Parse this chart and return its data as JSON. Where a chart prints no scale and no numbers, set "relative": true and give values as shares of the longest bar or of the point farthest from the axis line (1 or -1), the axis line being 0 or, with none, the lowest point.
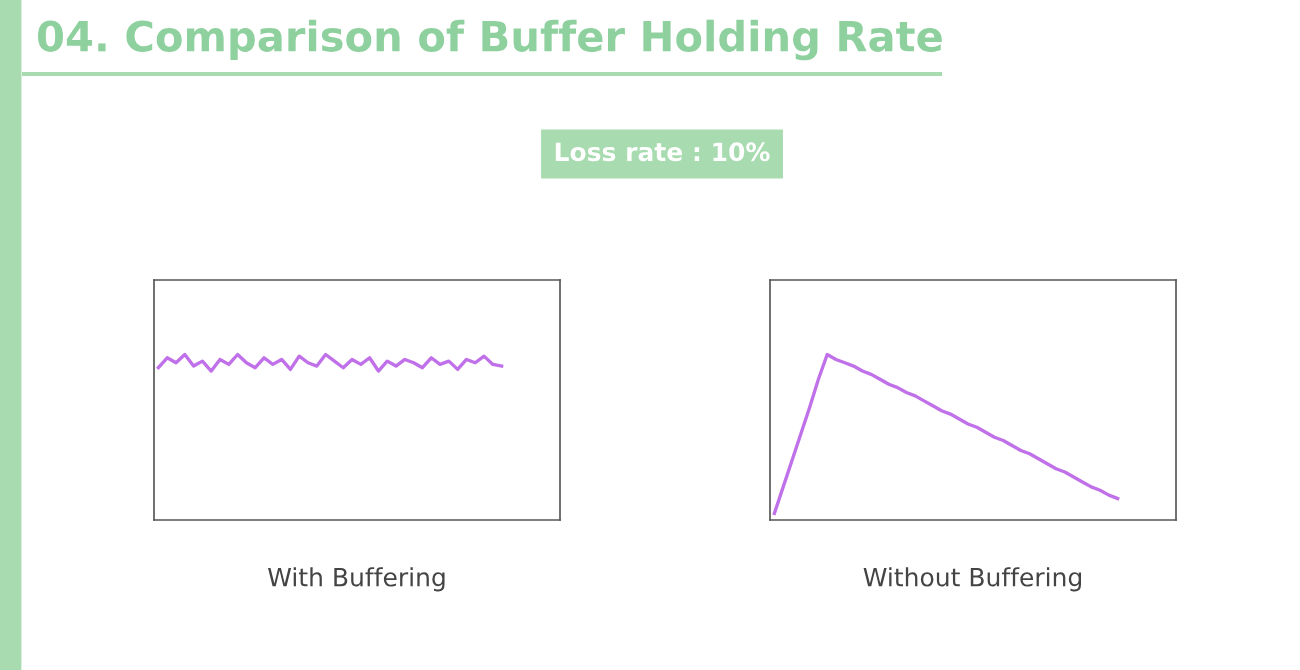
{
  "chart_data": [
    {
      "type": "other",
      "title": "04. Comparison of Buffer Holding Rate",
      "subtitle": "Loss rate : 10%"
    },
    {
      "type": "line",
      "relative": true,
      "xlabel": "With Buffering",
      "tick_labels": false,
      "categories": [
        null,
        null,
        null,
        null,
        null,
        null,
        null,
        null,
        null,
        null,
        null,
        null,
        null,
        null,
        null,
        null,
        null,
        null,
        null,
        null,
        null,
        null,
        null,
        null,
        null,
        null,
        null,
        null,
        null,
        null,
        null,
        null,
        null,
        null,
        null,
        null,
        null,
        null,
        null,
        null
      ],
      "series": [
        {
          "color": "#c070e8",
          "values": [
            0.92,
            0.98,
            0.95,
            1.0,
            0.93,
            0.96,
            0.9,
            0.97,
            0.94,
            1.0,
            0.95,
            0.92,
            0.98,
            0.94,
            0.97,
            0.91,
            0.99,
            0.95,
            0.93,
            1.0,
            0.96,
            0.92,
            0.97,
            0.94,
            0.98,
            0.9,
            0.96,
            0.93,
            0.97,
            0.95,
            0.92,
            0.98,
            0.94,
            0.96,
            0.91,
            0.97,
            0.95,
            0.99,
            0.94,
            0.93
          ]
        }
      ]
    },
    {
      "type": "line",
      "relative": true,
      "xlabel": "Without Buffering",
      "tick_labels": false,
      "categories": [
        null,
        null,
        null,
        null,
        null,
        null,
        null,
        null,
        null,
        null,
        null,
        null,
        null,
        null,
        null,
        null,
        null,
        null,
        null,
        null,
        null,
        null,
        null,
        null,
        null,
        null,
        null,
        null,
        null,
        null,
        null,
        null,
        null,
        null,
        null,
        null,
        null,
        null,
        null,
        null
      ],
      "series": [
        {
          "color": "#c070e8",
          "values": [
            0.04,
            0.2,
            0.36,
            0.52,
            0.68,
            0.85,
            1.0,
            0.97,
            0.95,
            0.93,
            0.9,
            0.88,
            0.85,
            0.82,
            0.8,
            0.77,
            0.75,
            0.72,
            0.69,
            0.66,
            0.64,
            0.61,
            0.58,
            0.56,
            0.53,
            0.5,
            0.48,
            0.45,
            0.42,
            0.4,
            0.37,
            0.34,
            0.31,
            0.29,
            0.26,
            0.23,
            0.2,
            0.18,
            0.15,
            0.13
          ]
        }
      ]
    }
  ]
}
